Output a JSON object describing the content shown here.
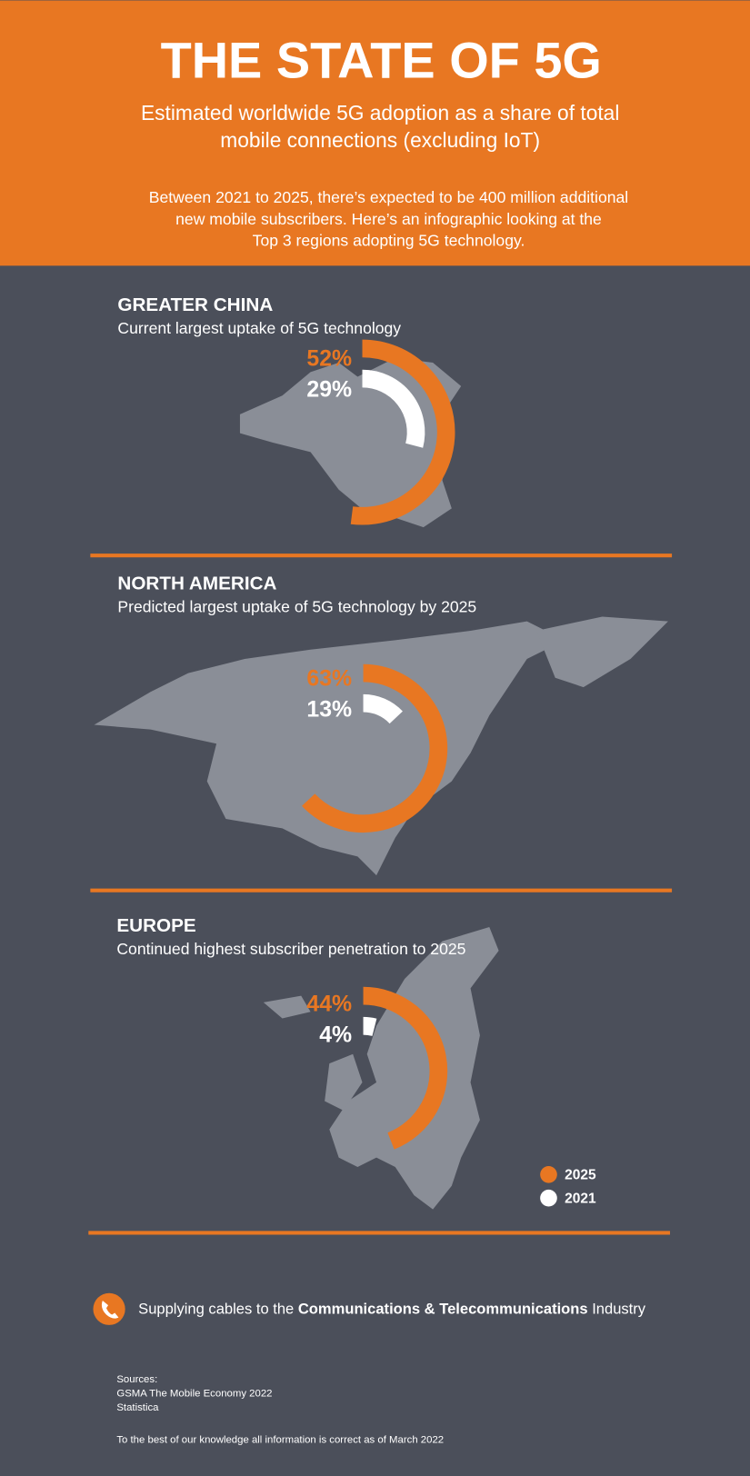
{
  "header": {
    "title": "THE STATE OF 5G",
    "subtitle": [
      "Estimated worldwide 5G adoption as a share of total",
      "mobile connections (excluding IoT)"
    ],
    "intro": [
      "Between 2021 to 2025, there’s expected to be 400 million additional",
      "new mobile subscribers. Here’s an infographic looking at the",
      "Top 3 regions adopting 5G technology."
    ]
  },
  "chart_data": [
    {
      "type": "radial_bar",
      "title": "GREATER CHINA",
      "subtitle": "Current largest uptake of 5G technology",
      "series": [
        {
          "color": "#e87722",
          "values": [
            52
          ],
          "value_labels": [
            "52%"
          ]
        },
        {
          "color": "#ffffff",
          "values": [
            29
          ],
          "value_labels": [
            "29%"
          ]
        }
      ]
    },
    {
      "type": "radial_bar",
      "title": "NORTH AMERICA",
      "subtitle": "Predicted largest uptake of 5G technology by 2025",
      "series": [
        {
          "color": "#e87722",
          "values": [
            63
          ],
          "value_labels": [
            "63%"
          ]
        },
        {
          "color": "#ffffff",
          "values": [
            13
          ],
          "value_labels": [
            "13%"
          ]
        }
      ]
    },
    {
      "type": "radial_bar",
      "title": "EUROPE",
      "subtitle": "Continued highest subscriber penetration to 2025",
      "series": [
        {
          "name": "2025",
          "color": "#e87722",
          "values": [
            44
          ],
          "value_labels": [
            "44%"
          ]
        },
        {
          "name": "2021",
          "color": "#ffffff",
          "values": [
            4
          ],
          "value_labels": [
            "4%"
          ]
        }
      ],
      "legend": "bottom-right"
    }
  ],
  "footer": {
    "tagline": [
      "Supplying cables to the ",
      "Communications & Telecommunications",
      " Industry"
    ],
    "sources": [
      "Sources:",
      "GSMA The Mobile Economy 2022",
      "Statistica"
    ],
    "disclaimer": "To the best of our knowledge all information is correct as of March 2022"
  }
}
